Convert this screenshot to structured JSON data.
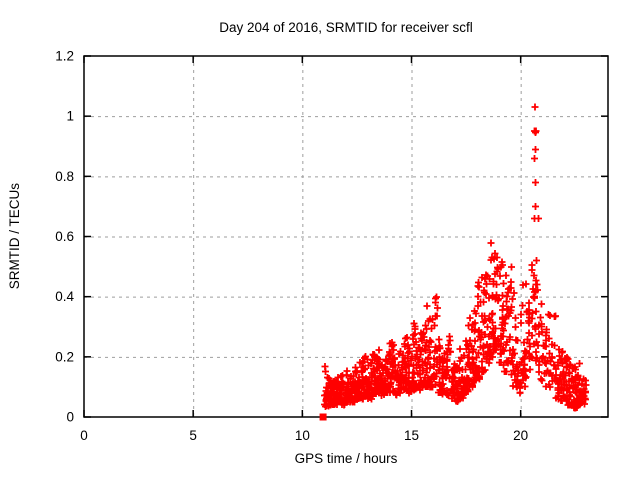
{
  "chart_data": {
    "type": "scatter",
    "title": "Day 204 of 2016, SRMTID for receiver scfl",
    "xlabel": "GPS time / hours",
    "ylabel": "SRMTID / TECUs",
    "xlim": [
      0,
      24
    ],
    "ylim": [
      0,
      1.2
    ],
    "xticks": {
      "values": [
        0,
        5,
        10,
        15,
        20
      ],
      "labels": [
        "0",
        "5",
        "10",
        "15",
        "20"
      ]
    },
    "yticks": {
      "values": [
        0,
        0.2,
        0.4,
        0.6,
        0.8,
        1,
        1.2
      ],
      "labels": [
        "0",
        "0.2",
        "0.4",
        "0.6",
        "0.8",
        "1",
        "1.2"
      ]
    },
    "grid": true,
    "legend": "none",
    "marker": "plus",
    "point_color": "#ff0000",
    "grid_color": "#9e9e9e",
    "border_color": "#000000",
    "background_color": "#ffffff",
    "start_point": {
      "x": 10.95,
      "y": 0,
      "marker": "filled-square"
    },
    "data_range_hours": [
      11.0,
      23.0
    ],
    "peak_value": 1.03,
    "peak_hour": 20.7,
    "bin_width_hours": 0.2,
    "density_bins": [
      [
        11.0,
        0.03,
        0.21,
        20
      ],
      [
        11.2,
        0.04,
        0.13,
        22
      ],
      [
        11.4,
        0.04,
        0.12,
        22
      ],
      [
        11.6,
        0.05,
        0.15,
        24
      ],
      [
        11.8,
        0.04,
        0.14,
        22
      ],
      [
        12.0,
        0.05,
        0.17,
        24
      ],
      [
        12.2,
        0.05,
        0.14,
        22
      ],
      [
        12.4,
        0.06,
        0.17,
        24
      ],
      [
        12.6,
        0.06,
        0.19,
        24
      ],
      [
        12.8,
        0.07,
        0.21,
        24
      ],
      [
        13.0,
        0.06,
        0.18,
        24
      ],
      [
        13.2,
        0.07,
        0.24,
        24
      ],
      [
        13.4,
        0.08,
        0.23,
        24
      ],
      [
        13.6,
        0.07,
        0.2,
        24
      ],
      [
        13.8,
        0.08,
        0.22,
        24
      ],
      [
        14.0,
        0.08,
        0.25,
        24
      ],
      [
        14.2,
        0.07,
        0.2,
        22
      ],
      [
        14.4,
        0.08,
        0.22,
        22
      ],
      [
        14.6,
        0.09,
        0.27,
        22
      ],
      [
        14.8,
        0.08,
        0.24,
        22
      ],
      [
        15.0,
        0.09,
        0.33,
        22
      ],
      [
        15.2,
        0.09,
        0.26,
        22
      ],
      [
        15.4,
        0.1,
        0.29,
        22
      ],
      [
        15.6,
        0.1,
        0.37,
        22
      ],
      [
        15.8,
        0.1,
        0.33,
        20
      ],
      [
        16.0,
        0.1,
        0.42,
        22
      ],
      [
        16.2,
        0.08,
        0.26,
        20
      ],
      [
        16.4,
        0.07,
        0.22,
        20
      ],
      [
        16.6,
        0.07,
        0.32,
        20
      ],
      [
        16.8,
        0.06,
        0.21,
        20
      ],
      [
        17.0,
        0.05,
        0.18,
        22
      ],
      [
        17.2,
        0.06,
        0.23,
        22
      ],
      [
        17.4,
        0.08,
        0.28,
        22
      ],
      [
        17.6,
        0.1,
        0.33,
        22
      ],
      [
        17.8,
        0.12,
        0.38,
        22
      ],
      [
        18.0,
        0.12,
        0.46,
        22
      ],
      [
        18.2,
        0.15,
        0.47,
        22
      ],
      [
        18.4,
        0.18,
        0.53,
        24
      ],
      [
        18.6,
        0.2,
        0.58,
        24
      ],
      [
        18.8,
        0.22,
        0.56,
        24
      ],
      [
        19.0,
        0.18,
        0.52,
        22
      ],
      [
        19.2,
        0.15,
        0.5,
        20
      ],
      [
        19.4,
        0.14,
        0.55,
        18
      ],
      [
        19.6,
        0.1,
        0.42,
        16
      ],
      [
        19.8,
        0.08,
        0.35,
        16
      ],
      [
        20.0,
        0.1,
        0.45,
        18
      ],
      [
        20.2,
        0.12,
        0.48,
        16
      ],
      [
        20.4,
        0.15,
        0.52,
        14
      ],
      [
        20.6,
        0.18,
        0.5,
        14
      ],
      [
        20.8,
        0.12,
        0.4,
        14
      ],
      [
        21.0,
        0.1,
        0.32,
        14
      ],
      [
        21.2,
        0.1,
        0.36,
        12
      ],
      [
        21.4,
        0.12,
        0.36,
        12
      ],
      [
        21.6,
        0.06,
        0.26,
        18
      ],
      [
        21.8,
        0.05,
        0.22,
        20
      ],
      [
        22.0,
        0.04,
        0.2,
        20
      ],
      [
        22.2,
        0.04,
        0.18,
        20
      ],
      [
        22.4,
        0.03,
        0.17,
        22
      ],
      [
        22.6,
        0.04,
        0.18,
        22
      ],
      [
        22.8,
        0.04,
        0.14,
        18
      ]
    ],
    "outlier_points": [
      [
        20.66,
        1.03
      ],
      [
        20.64,
        0.95
      ],
      [
        20.7,
        0.95
      ],
      [
        20.67,
        0.945
      ],
      [
        20.68,
        0.89
      ],
      [
        20.64,
        0.86
      ],
      [
        20.67,
        0.78
      ],
      [
        20.68,
        0.7
      ],
      [
        20.63,
        0.66
      ],
      [
        20.82,
        0.66
      ],
      [
        20.72,
        0.52
      ],
      [
        20.6,
        0.47
      ],
      [
        20.75,
        0.44
      ],
      [
        20.63,
        0.4
      ],
      [
        20.7,
        0.35
      ],
      [
        20.66,
        0.3
      ],
      [
        20.73,
        0.25
      ]
    ]
  }
}
